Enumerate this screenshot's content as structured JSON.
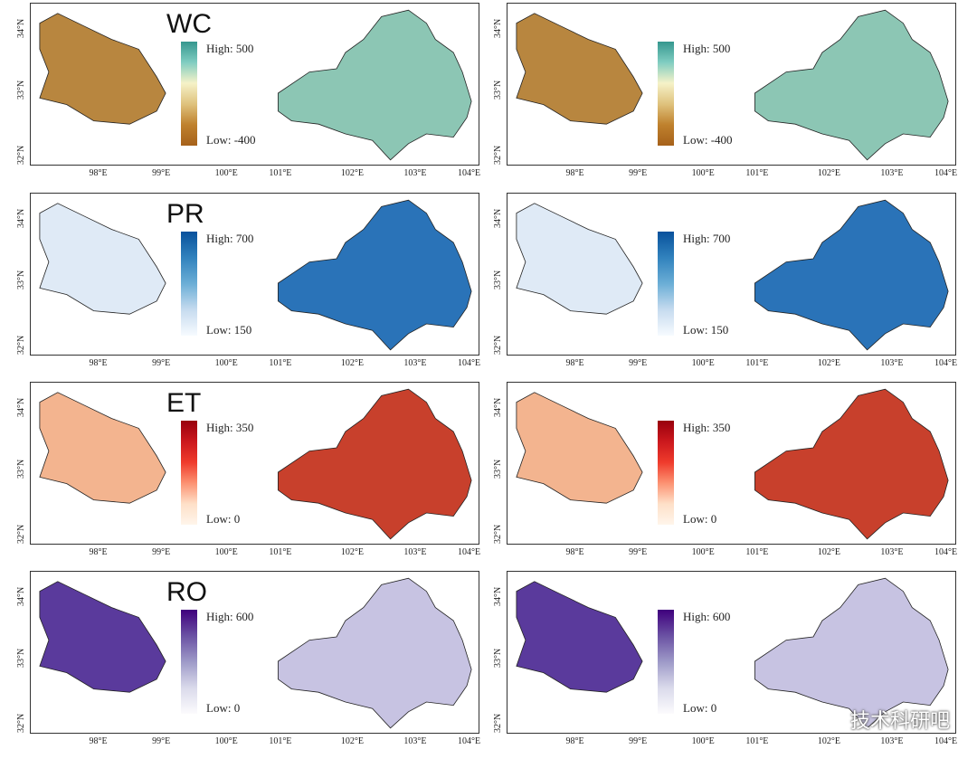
{
  "rows": [
    {
      "var": "WC",
      "high": "High: 500",
      "low": "Low: -400",
      "grad": "linear-gradient(to bottom,#35978f,#80cdc1,#f6f2c8,#dfc27d,#bf812d,#a6611a)",
      "west": "#b8863f",
      "east": "#8cc6b4",
      "ticks": true
    },
    {
      "var": "PR",
      "high": "High: 700",
      "low": "Low: 150",
      "grad": "linear-gradient(to bottom,#08519c,#3182bd,#6baed6,#c6dbef,#f7fbff)",
      "west": "#dfeaf6",
      "east": "#2a73b8",
      "ticks": true
    },
    {
      "var": "ET",
      "high": "High: 350",
      "low": "Low: 0",
      "grad": "linear-gradient(to bottom,#99000d,#cb181d,#ef3b2c,#fc9272,#fee0c8,#fff5eb)",
      "west": "#f3b48f",
      "east": "#c8402c",
      "ticks": true
    },
    {
      "var": "RO",
      "high": "High: 600",
      "low": "Low: 0",
      "grad": "linear-gradient(to bottom,#3f007d,#6a51a3,#9e9ac8,#dadaeb,#fcfbfd)",
      "west": "#5a3a9c",
      "east": "#c7c3e2",
      "ticks": true
    }
  ],
  "yticks": [
    "34°N",
    "33°N",
    "32°N"
  ],
  "xticks": [
    "98°E",
    "99°E",
    "100°E",
    "101°E",
    "102°E",
    "103°E",
    "104°E"
  ],
  "watermark": "技术科研吧"
}
